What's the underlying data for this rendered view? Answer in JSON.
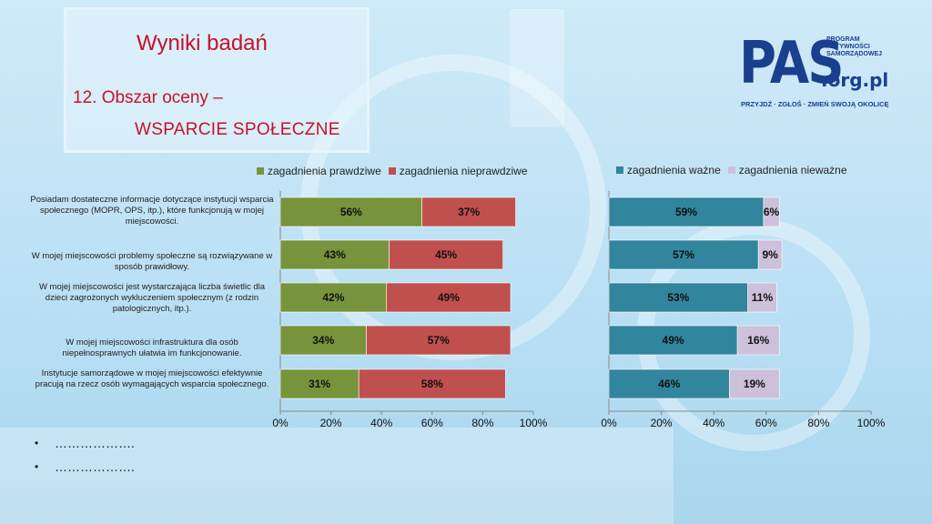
{
  "slide": {
    "title": "Wyniki badań",
    "subtitle_line1": "12. Obszar oceny –",
    "subtitle_line2": "WSPARCIE SPOŁECZNE",
    "bullets": [
      "……………….",
      "………………."
    ]
  },
  "logo": {
    "main": "PAS",
    "small_lines": [
      "PROGRAM",
      "AKTYWNOŚCI",
      "SAMORZĄDOWEJ"
    ],
    "org": ".org.pl",
    "slogan": "PRZYJDŹ · ZGŁOŚ · ZMIEŃ SWOJĄ OKOLICĘ"
  },
  "colors": {
    "green": "#77933c",
    "red": "#c0504d",
    "teal": "#31859c",
    "lilac": "#ccc0da"
  },
  "chart_data": [
    {
      "type": "bar",
      "orientation": "horizontal",
      "stacked": true,
      "categories": [
        "Posiadam dostateczne informacje  dotyczące instytucji wsparcia społecznego (MOPR, OPS, itp.), które funkcjonują w mojej miejscowości.",
        "W mojej miejscowości  problemy społeczne są rozwiązywane w sposób prawidłowy.",
        "W mojej miejscowości jest wystarczająca liczba świetlic dla dzieci zagrożonych wykluczeniem społecznym (z rodzin patologicznych, itp.).",
        "W mojej miejscowości infrastruktura dla osób niepełnosprawnych ułatwia im funkcjonowanie.",
        "Instytucje samorządowe w mojej miejscowości efektywnie pracują na rzecz osób wymagających wsparcia społecznego."
      ],
      "series": [
        {
          "name": "zagadnienia prawdziwe",
          "values": [
            56,
            43,
            42,
            34,
            31
          ],
          "labels": [
            "56%",
            "43%",
            "42%",
            "34%",
            "31%"
          ]
        },
        {
          "name": "zagadnienia nieprawdziwe",
          "values": [
            37,
            45,
            49,
            57,
            58
          ],
          "labels": [
            "37%",
            "45%",
            "49%",
            "57%",
            "58%"
          ]
        }
      ],
      "xlim": [
        0,
        100
      ],
      "ticks": [
        "0%",
        "20%",
        "40%",
        "60%",
        "80%",
        "100%"
      ],
      "legend": "top"
    },
    {
      "type": "bar",
      "orientation": "horizontal",
      "stacked": true,
      "categories": [
        "Posiadam dostateczne informacje  dotyczące instytucji wsparcia społecznego (MOPR, OPS, itp.), które funkcjonują w mojej miejscowości.",
        "W mojej miejscowości  problemy społeczne są rozwiązywane w sposób prawidłowy.",
        "W mojej miejscowości jest wystarczająca liczba świetlic dla dzieci zagrożonych wykluczeniem społecznym (z rodzin patologicznych, itp.).",
        "W mojej miejscowości infrastruktura dla osób niepełnosprawnych ułatwia im funkcjonowanie.",
        "Instytucje samorządowe w mojej miejscowości efektywnie pracują na rzecz osób wymagających wsparcia społecznego."
      ],
      "series": [
        {
          "name": "zagadnienia ważne",
          "values": [
            59,
            57,
            53,
            49,
            46
          ],
          "labels": [
            "59%",
            "57%",
            "53%",
            "49%",
            "46%"
          ]
        },
        {
          "name": "zagadnienia nieważne",
          "values": [
            6,
            9,
            11,
            16,
            19
          ],
          "labels": [
            "6%",
            "9%",
            "11%",
            "16%",
            "19%"
          ]
        }
      ],
      "xlim": [
        0,
        100
      ],
      "ticks": [
        "0%",
        "20%",
        "40%",
        "60%",
        "80%",
        "100%"
      ],
      "legend": "top"
    }
  ]
}
